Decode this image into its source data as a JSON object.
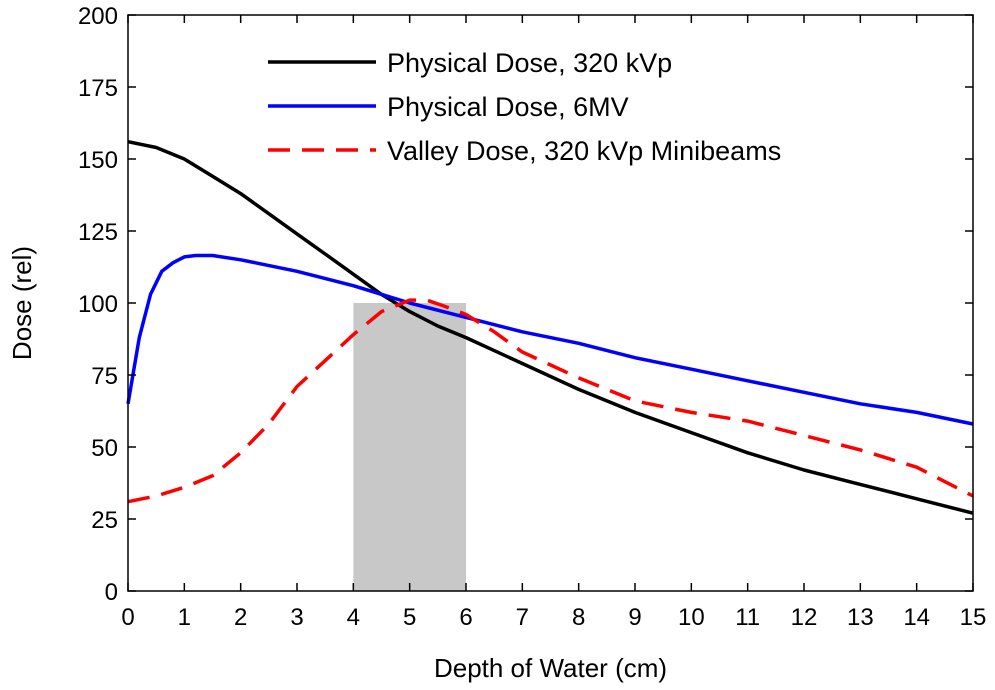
{
  "chart_data": {
    "type": "line",
    "title": "",
    "xlabel": "Depth of Water (cm)",
    "ylabel": "Dose (rel)",
    "xlim": [
      0,
      15
    ],
    "ylim": [
      0,
      200
    ],
    "xticks": [
      0,
      1,
      2,
      3,
      4,
      5,
      6,
      7,
      8,
      9,
      10,
      11,
      12,
      13,
      14,
      15
    ],
    "yticks": [
      0,
      25,
      50,
      75,
      100,
      125,
      150,
      175,
      200
    ],
    "grid": false,
    "legend_position": "top-right",
    "shaded_region": {
      "x_start": 4,
      "x_end": 6,
      "y_top": 100,
      "color": "#c8c8c8"
    },
    "series": [
      {
        "name": "Physical Dose, 320 kVp",
        "color": "#000000",
        "style": "solid",
        "x": [
          0,
          0.5,
          1,
          1.5,
          2,
          2.5,
          3,
          3.5,
          4,
          4.5,
          5,
          5.5,
          6,
          7,
          8,
          9,
          10,
          11,
          12,
          13,
          14,
          15
        ],
        "y": [
          156,
          154,
          150,
          144,
          138,
          131,
          124,
          117,
          110,
          103,
          97,
          92,
          88,
          79,
          70,
          62,
          55,
          48,
          42,
          37,
          32,
          27
        ]
      },
      {
        "name": "Physical Dose, 6MV",
        "color": "#0000ff",
        "style": "solid",
        "x": [
          0,
          0.2,
          0.4,
          0.6,
          0.8,
          1,
          1.2,
          1.5,
          2,
          3,
          4,
          5,
          6,
          7,
          8,
          9,
          10,
          11,
          12,
          13,
          14,
          15
        ],
        "y": [
          65,
          88,
          103,
          111,
          114,
          116,
          116.5,
          116.5,
          115,
          111,
          106,
          100,
          95,
          90,
          86,
          81,
          77,
          73,
          69,
          65,
          62,
          58
        ]
      },
      {
        "name": "Valley Dose, 320 kVp Minibeams",
        "color": "#ff0000",
        "style": "dashed",
        "x": [
          0,
          0.5,
          1,
          1.5,
          2,
          2.5,
          3,
          3.5,
          4,
          4.5,
          5,
          5.3,
          5.6,
          6,
          6.5,
          7,
          8,
          9,
          10,
          11,
          12,
          13,
          14,
          15
        ],
        "y": [
          31,
          33,
          36,
          40,
          48,
          58,
          71,
          80,
          89,
          97,
          101,
          101,
          99,
          96,
          90,
          83,
          74,
          66,
          62,
          59,
          54,
          49,
          43,
          33
        ]
      }
    ]
  }
}
